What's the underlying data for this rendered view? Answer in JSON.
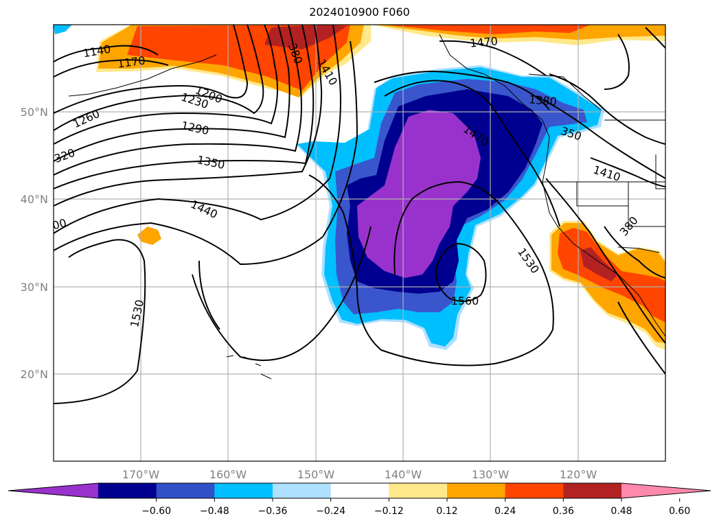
{
  "title": "2024010900 F060",
  "map": {
    "projection": "lat-lon",
    "lon_range": [
      -180,
      -110
    ],
    "lat_range": [
      10,
      60
    ],
    "gridlines": true,
    "lat_labels": [
      "20°N",
      "30°N",
      "40°N",
      "50°N"
    ],
    "lon_labels": [
      "170°W",
      "160°W",
      "150°W",
      "140°W",
      "130°W",
      "120°W"
    ],
    "contour_labels": [
      "1140",
      "1170",
      "1200",
      "1230",
      "1260",
      "1290",
      "320",
      "1350",
      "1440",
      "00",
      "1530",
      "1410",
      "380",
      "1470",
      "1380",
      "350",
      "1470",
      "1410",
      "1530",
      "1560",
      "380"
    ]
  },
  "colorbar": {
    "ticks": [
      "−0.60",
      "−0.48",
      "−0.36",
      "−0.24",
      "−0.12",
      "0.12",
      "0.24",
      "0.36",
      "0.48",
      "0.60"
    ],
    "colors": [
      "#9932cc",
      "#000090",
      "#3050c8",
      "#00bfff",
      "#aee0ff",
      "#ffffff",
      "#ffe88a",
      "#ffa500",
      "#ff4500",
      "#b22222",
      "#ff89ad"
    ],
    "extend": "both"
  },
  "colors": {
    "purple": "#9932cc",
    "navy": "#000090",
    "blue": "#3a56cc",
    "cyan": "#00bfff",
    "lightblue": "#aee0ff",
    "yellow": "#ffe88a",
    "orange": "#ffa500",
    "redorange": "#ff4500",
    "firebrick": "#b22222",
    "pink": "#ff89ad"
  }
}
